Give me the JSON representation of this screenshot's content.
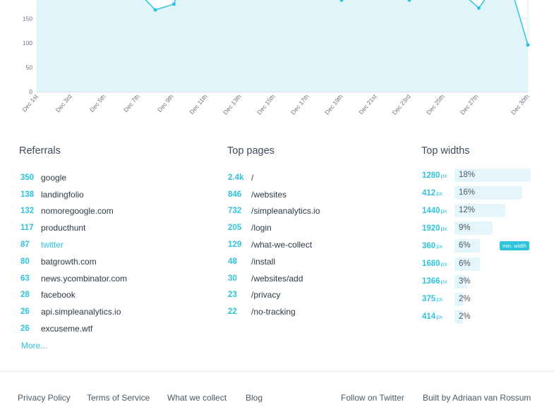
{
  "chart_data": {
    "type": "area",
    "y_ticks": [
      "0",
      "50",
      "100",
      "150"
    ],
    "x_ticks": [
      "Dec 1st",
      "Dec 3rd",
      "Dec 5th",
      "Dec 7th",
      "Dec 9th",
      "Dec 11th",
      "Dec 13th",
      "Dec 15th",
      "Dec 17th",
      "Dec 19th",
      "Dec 21st",
      "Dec 23rd",
      "Dec 25th",
      "Dec 27th",
      "Dec 30th"
    ],
    "points": [
      {
        "x": "Dec 7th",
        "y": 210
      },
      {
        "x": "Dec 8th",
        "y": 168
      },
      {
        "x": "Dec 9th",
        "y": 180
      },
      {
        "x": "Dec 9th",
        "y": 215
      },
      {
        "x": "Dec 19th",
        "y": 215
      },
      {
        "x": "Dec 19th",
        "y": 188
      },
      {
        "x": "Dec 19th",
        "y": 215
      },
      {
        "x": "Dec 23rd",
        "y": 215
      },
      {
        "x": "Dec 23rd",
        "y": 188
      },
      {
        "x": "Dec 23rd",
        "y": 215
      },
      {
        "x": "Dec 26th",
        "y": 215
      },
      {
        "x": "Dec 27th",
        "y": 172
      },
      {
        "x": "Dec 28th",
        "y": 215
      },
      {
        "x": "Dec 29th",
        "y": 215
      },
      {
        "x": "Dec 30th",
        "y": 96
      }
    ],
    "colors": {
      "line": "#2ec3dd",
      "fill": "#dff5fa",
      "grid": "#d3edf4"
    }
  },
  "referrals": {
    "title": "Referrals",
    "items": [
      {
        "count": "350",
        "label": "google"
      },
      {
        "count": "138",
        "label": "landingfolio"
      },
      {
        "count": "132",
        "label": "nomoregoogle.com"
      },
      {
        "count": "117",
        "label": "producthunt"
      },
      {
        "count": "87",
        "label": "twitter",
        "link": true
      },
      {
        "count": "80",
        "label": "batgrowth.com"
      },
      {
        "count": "63",
        "label": "news.ycombinator.com"
      },
      {
        "count": "28",
        "label": "facebook"
      },
      {
        "count": "26",
        "label": "api.simpleanalytics.io"
      },
      {
        "count": "26",
        "label": "excuseme.wtf"
      }
    ],
    "more": "More..."
  },
  "pages": {
    "title": "Top pages",
    "items": [
      {
        "count": "2.4k",
        "label": "/"
      },
      {
        "count": "846",
        "label": "/websites"
      },
      {
        "count": "732",
        "label": "/simpleanalytics.io"
      },
      {
        "count": "205",
        "label": "/login"
      },
      {
        "count": "129",
        "label": "/what-we-collect"
      },
      {
        "count": "48",
        "label": "/install"
      },
      {
        "count": "30",
        "label": "/websites/add"
      },
      {
        "count": "23",
        "label": "/privacy"
      },
      {
        "count": "22",
        "label": "/no-tracking"
      }
    ]
  },
  "widths": {
    "title": "Top widths",
    "unit": "px",
    "items": [
      {
        "width": "1280",
        "pct": "18%",
        "share": 0.18
      },
      {
        "width": "412",
        "pct": "16%",
        "share": 0.16
      },
      {
        "width": "1440",
        "pct": "12%",
        "share": 0.12
      },
      {
        "width": "1920",
        "pct": "9%",
        "share": 0.09
      },
      {
        "width": "360",
        "pct": "6%",
        "share": 0.06
      },
      {
        "width": "1680",
        "pct": "6%",
        "share": 0.06
      },
      {
        "width": "1366",
        "pct": "3%",
        "share": 0.03
      },
      {
        "width": "375",
        "pct": "2%",
        "share": 0.02
      },
      {
        "width": "414",
        "pct": "2%",
        "share": 0.02
      }
    ],
    "badge": "min. width"
  },
  "footer": {
    "privacy": "Privacy Policy",
    "terms": "Terms of Service",
    "collect": "What we collect",
    "blog": "Blog",
    "twitter": "Follow on Twitter",
    "built": "Built by Adriaan van Rossum"
  }
}
